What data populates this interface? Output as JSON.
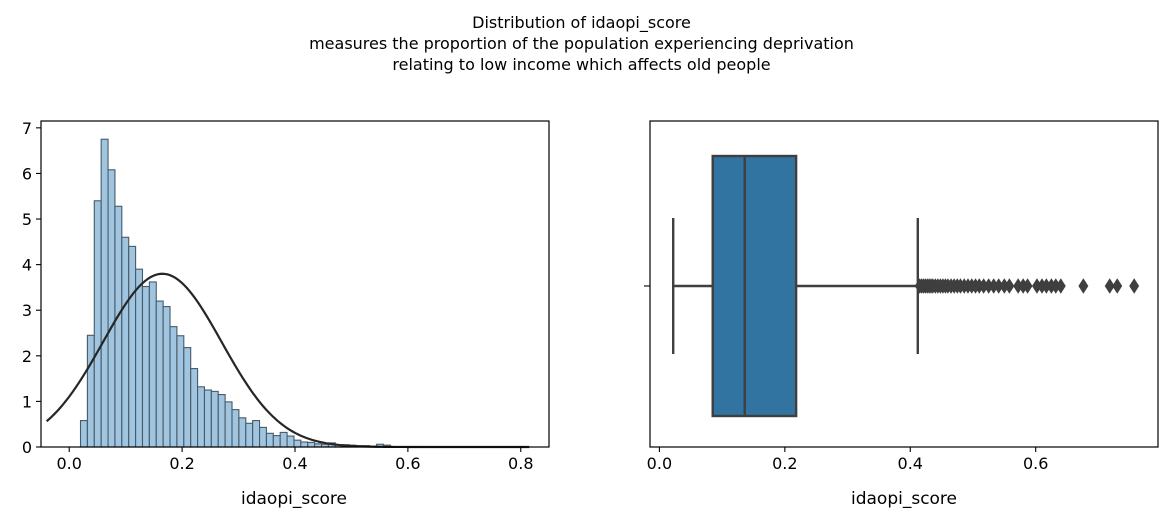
{
  "figure": {
    "title_lines": [
      "Distribution of idaopi_score",
      "measures the proportion of the population experiencing deprivation",
      "relating to low income which affects old people"
    ]
  },
  "chart_data": [
    {
      "type": "histogram",
      "xlabel": "idaopi_score",
      "ylabel": "",
      "xlim": [
        -0.05,
        0.85
      ],
      "ylim": [
        0,
        7.15
      ],
      "xticks": [
        0.0,
        0.2,
        0.4,
        0.6,
        0.8
      ],
      "xtick_labels": [
        "0.0",
        "0.2",
        "0.4",
        "0.6",
        "0.8"
      ],
      "yticks": [
        0,
        1,
        2,
        3,
        4,
        5,
        6,
        7
      ],
      "ytick_labels": [
        "0",
        "1",
        "2",
        "3",
        "4",
        "5",
        "6",
        "7"
      ],
      "bar_color": "#9fc5e0",
      "bar_edge_color": "#4a5a66",
      "curve_color": "#262626",
      "bins": {
        "x_start": 0.02,
        "bin_width": 0.0122,
        "densities": [
          0.58,
          2.45,
          5.4,
          6.75,
          6.08,
          5.28,
          4.6,
          4.4,
          3.9,
          3.52,
          3.62,
          3.2,
          3.08,
          2.64,
          2.44,
          2.18,
          1.72,
          1.32,
          1.25,
          1.22,
          1.15,
          0.99,
          0.82,
          0.64,
          0.52,
          0.58,
          0.43,
          0.3,
          0.25,
          0.32,
          0.24,
          0.15,
          0.11,
          0.1,
          0.07,
          0.06,
          0.09,
          0.05,
          0.05,
          0.04,
          0.03,
          0.03,
          0.02,
          0.06,
          0.04,
          0.01,
          0.01,
          0.01,
          0.01,
          0.01
        ]
      },
      "normal_fit": {
        "mean": 0.165,
        "std": 0.105,
        "x_range": [
          -0.04,
          0.815
        ]
      }
    },
    {
      "type": "boxplot",
      "xlabel": "idaopi_score",
      "xlim": [
        -0.015,
        0.795
      ],
      "xticks": [
        0.0,
        0.2,
        0.4,
        0.6
      ],
      "xtick_labels": [
        "0.0",
        "0.2",
        "0.4",
        "0.6"
      ],
      "box_color": "#3274a1",
      "line_color": "#3f3f3f",
      "whisker_low": 0.022,
      "q1": 0.085,
      "median": 0.136,
      "q3": 0.218,
      "whisker_high": 0.412,
      "outliers": [
        0.415,
        0.418,
        0.421,
        0.424,
        0.427,
        0.43,
        0.433,
        0.436,
        0.44,
        0.444,
        0.448,
        0.452,
        0.456,
        0.46,
        0.465,
        0.47,
        0.475,
        0.48,
        0.486,
        0.492,
        0.498,
        0.504,
        0.51,
        0.517,
        0.525,
        0.533,
        0.541,
        0.55,
        0.558,
        0.572,
        0.58,
        0.587,
        0.602,
        0.61,
        0.617,
        0.625,
        0.632,
        0.64,
        0.676,
        0.718,
        0.73,
        0.757
      ]
    }
  ]
}
